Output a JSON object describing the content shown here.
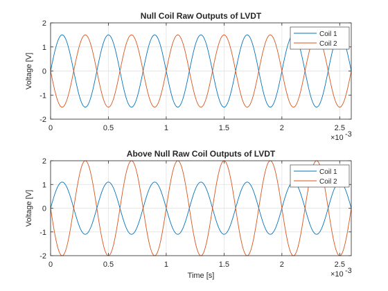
{
  "chart_data": [
    {
      "type": "line",
      "title": "Null Coil Raw Outputs of LVDT",
      "xlabel": "",
      "ylabel": "Voltage [V]",
      "xlim": [
        0,
        0.0026
      ],
      "ylim": [
        -2,
        2
      ],
      "x_ticks": [
        0,
        0.0005,
        0.001,
        0.0015,
        0.002,
        0.0025
      ],
      "x_tick_labels": [
        "0",
        "0.5",
        "1",
        "1.5",
        "2",
        "2.5"
      ],
      "x_exponent_label": "×10",
      "x_exponent_power": "-3",
      "y_ticks": [
        -2,
        -1,
        0,
        1,
        2
      ],
      "y_tick_labels": [
        "-2",
        "-1",
        "0",
        "1",
        "2"
      ],
      "grid": true,
      "legend_position": "top-right",
      "series": [
        {
          "name": "Coil 1",
          "color": "#0072BD",
          "amplitude": 1.5,
          "frequency_hz": 2500,
          "phase_deg": 0
        },
        {
          "name": "Coil 2",
          "color": "#D95319",
          "amplitude": 1.5,
          "frequency_hz": 2500,
          "phase_deg": 180
        }
      ]
    },
    {
      "type": "line",
      "title": "Above Null Raw Coil Outputs of LVDT",
      "xlabel": "Time [s]",
      "ylabel": "Voltage [V]",
      "xlim": [
        0,
        0.0026
      ],
      "ylim": [
        -2,
        2
      ],
      "x_ticks": [
        0,
        0.0005,
        0.001,
        0.0015,
        0.002,
        0.0025
      ],
      "x_tick_labels": [
        "0",
        "0.5",
        "1",
        "1.5",
        "2",
        "2.5"
      ],
      "x_exponent_label": "×10",
      "x_exponent_power": "-3",
      "y_ticks": [
        -2,
        -1,
        0,
        1,
        2
      ],
      "y_tick_labels": [
        "-2",
        "-1",
        "0",
        "1",
        "2"
      ],
      "grid": true,
      "legend_position": "top-right",
      "series": [
        {
          "name": "Coil 1",
          "color": "#0072BD",
          "amplitude": 1.1,
          "frequency_hz": 2500,
          "phase_deg": 0
        },
        {
          "name": "Coil 2",
          "color": "#D95319",
          "amplitude": 2.0,
          "frequency_hz": 2500,
          "phase_deg": 180
        }
      ]
    }
  ]
}
